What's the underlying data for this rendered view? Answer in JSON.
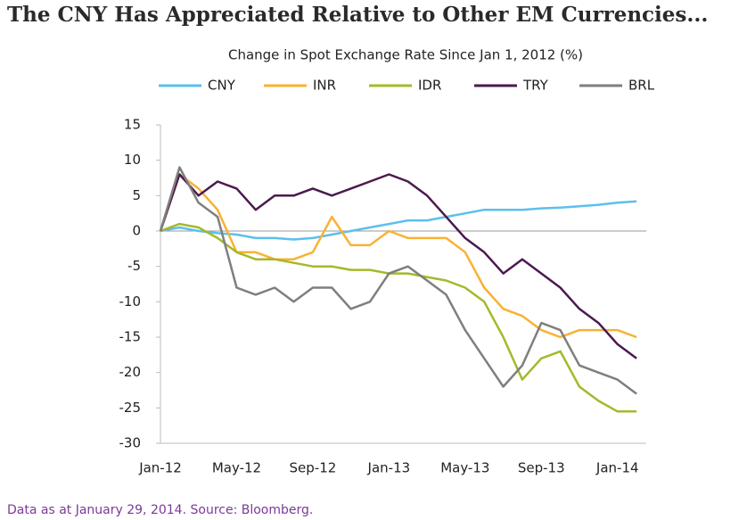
{
  "chart_data": {
    "type": "line",
    "title": "The CNY Has Appreciated Relative to Other EM Currencies...",
    "subtitle": "Change in Spot Exchange Rate Since Jan 1, 2012 (%)",
    "note": "Data as at January 29, 2014. Source: Bloomberg.",
    "categories": [
      "Jan-12",
      null,
      null,
      null,
      "May-12",
      null,
      null,
      null,
      "Sep-12",
      null,
      null,
      null,
      "Jan-13",
      null,
      null,
      null,
      "May-13",
      null,
      null,
      null,
      "Sep-13",
      null,
      null,
      null,
      "Jan-14",
      null
    ],
    "series": [
      {
        "name": "CNY",
        "color": "#5bc0eb",
        "values": [
          0,
          0.5,
          0,
          -0.3,
          -0.5,
          -1,
          -1,
          -1.2,
          -1,
          -0.5,
          0,
          0.5,
          1,
          1.5,
          1.5,
          2,
          2.5,
          3,
          3,
          3,
          3.2,
          3.3,
          3.5,
          3.7,
          4,
          4.2
        ]
      },
      {
        "name": "INR",
        "color": "#f9b233",
        "values": [
          0,
          8,
          6,
          3,
          -3,
          -3,
          -4,
          -4,
          -3,
          2,
          -2,
          -2,
          0,
          -1,
          -1,
          -1,
          -3,
          -8,
          -11,
          -12,
          -14,
          -15,
          -14,
          -14,
          -14,
          -15
        ]
      },
      {
        "name": "IDR",
        "color": "#a7b82a",
        "values": [
          0,
          1,
          0.5,
          -1,
          -3,
          -4,
          -4,
          -4.5,
          -5,
          -5,
          -5.5,
          -5.5,
          -6,
          -6,
          -6.5,
          -7,
          -8,
          -10,
          -15,
          -21,
          -18,
          -17,
          -22,
          -24,
          -25.5,
          -25.5
        ]
      },
      {
        "name": "TRY",
        "color": "#4b1a4d",
        "values": [
          0,
          8,
          5,
          7,
          6,
          3,
          5,
          5,
          6,
          5,
          6,
          7,
          8,
          7,
          5,
          2,
          -1,
          -3,
          -6,
          -4,
          -6,
          -8,
          -11,
          -13,
          -16,
          -18
        ]
      },
      {
        "name": "BRL",
        "color": "#7f7f7f",
        "values": [
          0,
          9,
          4,
          2,
          -8,
          -9,
          -8,
          -10,
          -8,
          -8,
          -11,
          -10,
          -6,
          -5,
          -7,
          -9,
          -14,
          -18,
          -22,
          -19,
          -13,
          -14,
          -19,
          -20,
          -21,
          -23
        ]
      }
    ],
    "ylim": [
      -30,
      15
    ],
    "yticks": [
      -30,
      -25,
      -20,
      -15,
      -10,
      -5,
      0,
      5,
      10,
      15
    ],
    "zero_line": true,
    "grid": false
  }
}
